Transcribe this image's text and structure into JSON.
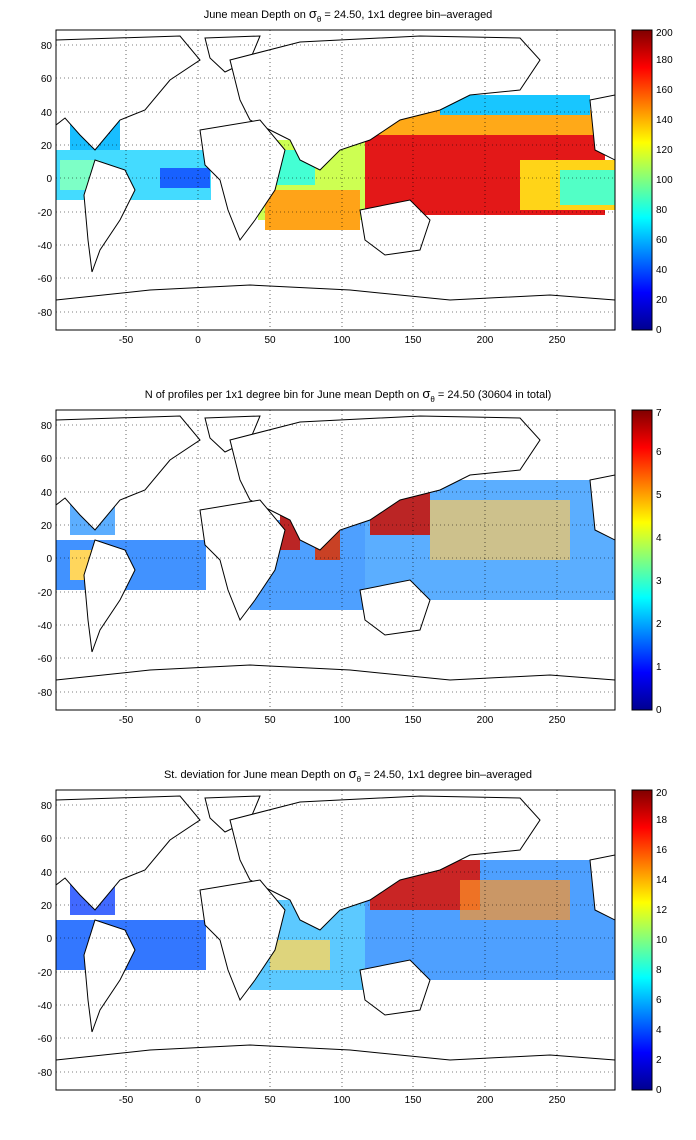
{
  "figure": {
    "panels": [
      {
        "id": "mean_depth",
        "title_prefix": "June mean Depth on ",
        "title_sigma": "σ",
        "title_sub": "θ",
        "title_suffix": " = 24.50, 1x1 degree bin–averaged",
        "colorbar_ticks": [
          "0",
          "20",
          "40",
          "60",
          "80",
          "100",
          "120",
          "140",
          "160",
          "180",
          "200"
        ],
        "colorbar_range": [
          0,
          200
        ]
      },
      {
        "id": "n_profiles",
        "title_prefix": "N of profiles per 1x1 degree bin for June mean Depth on ",
        "title_sigma": "σ",
        "title_sub": "θ",
        "title_suffix": " = 24.50 (30604 in total)",
        "colorbar_ticks": [
          "0",
          "1",
          "2",
          "3",
          "4",
          "5",
          "6",
          "7"
        ],
        "colorbar_range": [
          0,
          7
        ]
      },
      {
        "id": "std_dev",
        "title_prefix": "St. deviation for June mean Depth on ",
        "title_sigma": "σ",
        "title_sub": "θ",
        "title_suffix": " = 24.50, 1x1 degree bin–averaged",
        "colorbar_ticks": [
          "0",
          "2",
          "4",
          "6",
          "8",
          "10",
          "12",
          "14",
          "16",
          "18",
          "20"
        ],
        "colorbar_range": [
          0,
          20
        ]
      }
    ],
    "x_ticks": [
      "-50",
      "0",
      "50",
      "100",
      "150",
      "200",
      "250"
    ],
    "y_ticks": [
      "80",
      "60",
      "40",
      "20",
      "0",
      "-20",
      "-40",
      "-60",
      "-80"
    ],
    "colormap": "jet",
    "grid": "dotted"
  }
}
